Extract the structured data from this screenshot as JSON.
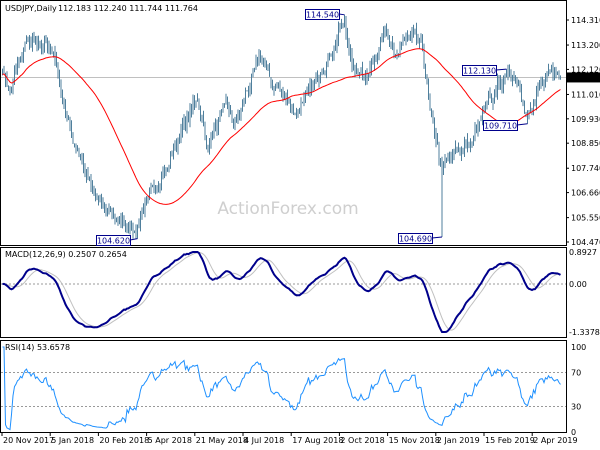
{
  "chart_data": {
    "type": "candlestick",
    "title": "USDJPY,Daily",
    "ohlc_readout": {
      "open": "112.183",
      "high": "112.240",
      "low": "111.744",
      "close": "111.764"
    },
    "current_price": "111.764",
    "price_axis_ticks": [
      "114.310",
      "113.200",
      "112.120",
      "111.010",
      "109.930",
      "108.850",
      "107.740",
      "106.660",
      "105.550",
      "104.470"
    ],
    "price_range": [
      104.47,
      114.31
    ],
    "date_axis_ticks": [
      "20 Nov 2017",
      "5 Jan 2018",
      "20 Feb 2018",
      "5 Apr 2018",
      "21 May 2018",
      "4 Jul 2018",
      "17 Aug 2018",
      "2 Oct 2018",
      "15 Nov 2018",
      "2 Jan 2019",
      "15 Feb 2019",
      "2 Apr 2019"
    ],
    "price_annotations": [
      {
        "text": "114.540",
        "date": "2018-10-04"
      },
      {
        "text": "104.620",
        "date": "2018-03-26"
      },
      {
        "text": "104.690",
        "date": "2019-01-03"
      },
      {
        "text": "112.130",
        "date": "2019-03-05"
      },
      {
        "text": "109.710",
        "date": "2019-03-25"
      }
    ],
    "close_path": [
      [
        "2017-11-20",
        111.9
      ],
      [
        "2017-11-27",
        111.2
      ],
      [
        "2017-12-12",
        113.4
      ],
      [
        "2017-12-22",
        113.2
      ],
      [
        "2018-01-05",
        113.0
      ],
      [
        "2018-01-12",
        111.0
      ],
      [
        "2018-01-26",
        108.6
      ],
      [
        "2018-02-16",
        106.2
      ],
      [
        "2018-03-02",
        105.6
      ],
      [
        "2018-03-23",
        104.9
      ],
      [
        "2018-04-02",
        106.2
      ],
      [
        "2018-04-20",
        107.7
      ],
      [
        "2018-05-03",
        109.2
      ],
      [
        "2018-05-21",
        110.9
      ],
      [
        "2018-05-29",
        108.7
      ],
      [
        "2018-06-15",
        110.6
      ],
      [
        "2018-06-25",
        109.6
      ],
      [
        "2018-07-18",
        112.8
      ],
      [
        "2018-07-31",
        111.3
      ],
      [
        "2018-08-09",
        111.0
      ],
      [
        "2018-08-21",
        110.1
      ],
      [
        "2018-09-05",
        111.5
      ],
      [
        "2018-09-20",
        112.6
      ],
      [
        "2018-10-04",
        114.3
      ],
      [
        "2018-10-11",
        112.2
      ],
      [
        "2018-10-26",
        111.9
      ],
      [
        "2018-11-12",
        114.0
      ],
      [
        "2018-11-20",
        112.7
      ],
      [
        "2018-12-03",
        113.6
      ],
      [
        "2018-12-14",
        113.4
      ],
      [
        "2018-12-24",
        110.4
      ],
      [
        "2019-01-03",
        107.7
      ],
      [
        "2019-01-10",
        108.3
      ],
      [
        "2019-01-31",
        108.9
      ],
      [
        "2019-02-12",
        110.5
      ],
      [
        "2019-03-05",
        111.9
      ],
      [
        "2019-03-14",
        111.6
      ],
      [
        "2019-03-25",
        109.9
      ],
      [
        "2019-04-05",
        111.6
      ],
      [
        "2019-04-17",
        112.0
      ],
      [
        "2019-04-24",
        111.76
      ]
    ],
    "moving_average": {
      "color": "#ff0000"
    },
    "macd": {
      "label": "MACD(12,26,9) 0.2507 0.2654",
      "fast": 12,
      "slow": 26,
      "signal": 9,
      "axis_ticks": [
        "0.8927",
        "0.00",
        "-1.3378"
      ],
      "range": [
        -1.3378,
        0.8927
      ],
      "main_color": "#00008b",
      "signal_color": "#c0c0c0"
    },
    "rsi": {
      "label": "RSI(14) 53.6578",
      "period": 14,
      "axis_ticks": [
        "100",
        "70",
        "30",
        "0"
      ],
      "levels": [
        70,
        30
      ],
      "range": [
        0,
        100
      ],
      "color": "#1e90ff"
    },
    "bar_color": "#4f7f9c",
    "grid": false
  },
  "watermark": "ActionForex.com"
}
